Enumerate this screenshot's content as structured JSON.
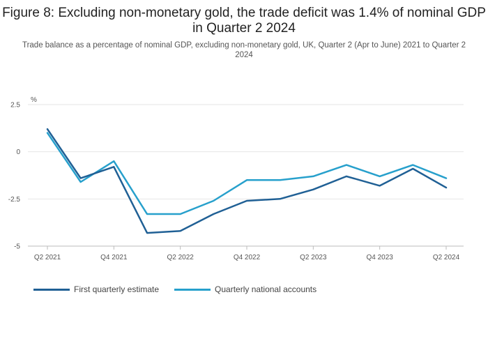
{
  "title": "Figure 8: Excluding non-monetary gold, the trade deficit was 1.4% of nominal GDP in Quarter 2 2024",
  "subtitle": "Trade balance as a percentage of nominal GDP, excluding non-monetary gold, UK, Quarter 2 (Apr to June) 2021 to Quarter 2 2024",
  "colors": {
    "first_estimate": "#206095",
    "qna": "#27a0cc",
    "grid": "#e6e6e6",
    "axis": "#bbbbbb"
  },
  "chart_data": {
    "type": "line",
    "ylabel": "%",
    "ylim": [
      -5,
      2.5
    ],
    "yticks": [
      2.5,
      0,
      -2.5,
      -5
    ],
    "ytick_labels": [
      "2.5",
      "0",
      "-2.5",
      "-5"
    ],
    "x": [
      "Q2 2021",
      "Q3 2021",
      "Q4 2021",
      "Q1 2022",
      "Q2 2022",
      "Q3 2022",
      "Q4 2022",
      "Q1 2023",
      "Q2 2023",
      "Q3 2023",
      "Q4 2023",
      "Q1 2024",
      "Q2 2024"
    ],
    "xtick_labels": [
      "Q2 2021",
      "",
      "Q4 2021",
      "",
      "Q2 2022",
      "",
      "Q4 2022",
      "",
      "Q2 2023",
      "",
      "Q4 2023",
      "",
      "Q2 2024"
    ],
    "grid": true,
    "legend_position": "bottom-left",
    "series": [
      {
        "name": "First quarterly estimate",
        "color": "#206095",
        "values": [
          1.2,
          -1.4,
          -0.8,
          -4.3,
          -4.2,
          -3.3,
          -2.6,
          -2.5,
          -2.0,
          -1.3,
          -1.8,
          -0.9,
          -1.9
        ]
      },
      {
        "name": "Quarterly national accounts",
        "color": "#27a0cc",
        "values": [
          1.0,
          -1.6,
          -0.5,
          -3.3,
          -3.3,
          -2.6,
          -1.5,
          -1.5,
          -1.3,
          -0.7,
          -1.3,
          -0.7,
          -1.4
        ]
      }
    ]
  }
}
